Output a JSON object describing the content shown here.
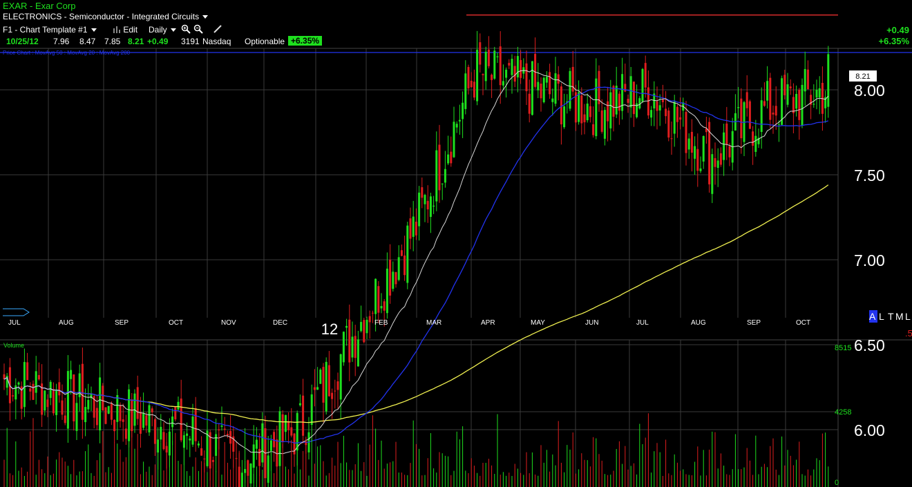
{
  "header": {
    "title": "EXAR - Exar Corp",
    "industry": "ELECTRONICS - Semiconductor - Integrated Circuits",
    "template": "F1 - Chart Template #1",
    "edit_label": "Edit",
    "period": "Daily"
  },
  "quote": {
    "date": "10/25/12",
    "open": "7.96",
    "high": "8.47",
    "low": "7.85",
    "close": "8.21",
    "change": "+0.49",
    "volume": "3191",
    "exchange": "Nasdaq",
    "optionable": "Optionable",
    "change_pct": "+6.35%"
  },
  "top_right": {
    "change": "+0.49",
    "change_pct": "+6.35%"
  },
  "price_legend": "Price Chart : MovAvg 50 : MovAvg 20 : MovAvg 200",
  "last_price_label": "8.21",
  "year_label": "12",
  "scale_letters": {
    "a": "A",
    "l": "L",
    "t": "T",
    "m": "M",
    "l2": "L"
  },
  "scale_stub": ".5",
  "volume_panel": {
    "title": "Volume",
    "ticks": [
      "8515",
      "4258",
      "0"
    ]
  },
  "colors": {
    "up": "#1ee01e",
    "down": "#e01e1e",
    "ma20": "#d8d8d8",
    "ma50": "#2233ee",
    "ma200": "#f0f050",
    "resistance": "#ff3333"
  },
  "chart_data": {
    "type": "candlestick",
    "price_ticks": [
      "8.00",
      "7.50",
      "7.00",
      "6.50",
      "6.00"
    ],
    "price_range": [
      5.4,
      8.5
    ],
    "volume_range": [
      0,
      8515
    ],
    "months": [
      "JUL",
      "AUG",
      "SEP",
      "OCT",
      "NOV",
      "DEC",
      "FEB",
      "MAR",
      "APR",
      "MAY",
      "JUN",
      "JUL",
      "AUG",
      "SEP",
      "OCT"
    ],
    "month_anchor_prices": [
      6.3,
      6.2,
      6.1,
      6.0,
      5.8,
      6.0,
      6.6,
      7.2,
      8.1,
      8.0,
      7.9,
      8.0,
      7.6,
      7.9,
      8.0
    ],
    "resistance_price": 8.44,
    "last_close": 8.21
  }
}
